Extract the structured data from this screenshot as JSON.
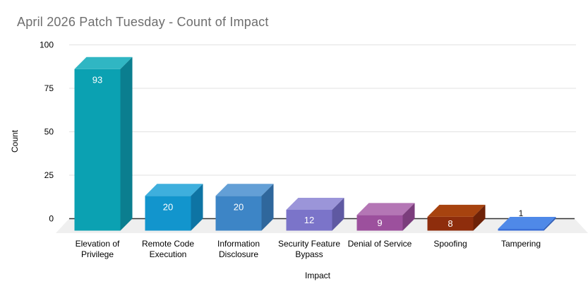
{
  "chart_data": {
    "type": "bar",
    "style": "3d-column",
    "title": "April 2026 Patch Tuesday - Count of Impact",
    "xlabel": "Impact",
    "ylabel": "Count",
    "ylim": [
      0,
      100
    ],
    "yticks": [
      0,
      25,
      50,
      75,
      100
    ],
    "grid": true,
    "legend": "none",
    "categories": [
      "Elevation of Privilege",
      "Remote Code Execution",
      "Information Disclosure",
      "Security Feature Bypass",
      "Denial of Service",
      "Spoofing",
      "Tampering"
    ],
    "tick_label_lines": [
      [
        "Elevation of",
        "Privilege"
      ],
      [
        "Remote Code",
        "Execution"
      ],
      [
        "Information",
        "Disclosure"
      ],
      [
        "Security Feature",
        "Bypass"
      ],
      [
        "Denial of Service"
      ],
      [
        "Spoofing"
      ],
      [
        "Tampering"
      ]
    ],
    "values": [
      93,
      20,
      20,
      12,
      9,
      8,
      1
    ],
    "value_labels": "shown-on-bars",
    "bar_colors": [
      {
        "front": "#0ba1b2",
        "top": "#30b6c3",
        "side": "#0b7e8f"
      },
      {
        "front": "#1295cd",
        "top": "#3eafdd",
        "side": "#0e74a4"
      },
      {
        "front": "#3d85c6",
        "top": "#639fd6",
        "side": "#2f679c"
      },
      {
        "front": "#7b74c9",
        "top": "#9b95d9",
        "side": "#5f59a2"
      },
      {
        "front": "#9c509d",
        "top": "#b476b5",
        "side": "#7b3d7c"
      },
      {
        "front": "#8e2d0c",
        "top": "#a7430f",
        "side": "#6e2208"
      },
      {
        "front": "#3a6fd8",
        "top": "#4f89e8",
        "side": "#2f5cb5"
      }
    ]
  },
  "colors": {
    "background": "#ffffff",
    "title_text": "#6e6e6e",
    "axis_text": "#000000",
    "gridline": "#e6e6e6",
    "zero_line": "#333333",
    "floor": "#efefef",
    "value_label_light": "#ffffff",
    "value_label_dark": "#111111"
  }
}
